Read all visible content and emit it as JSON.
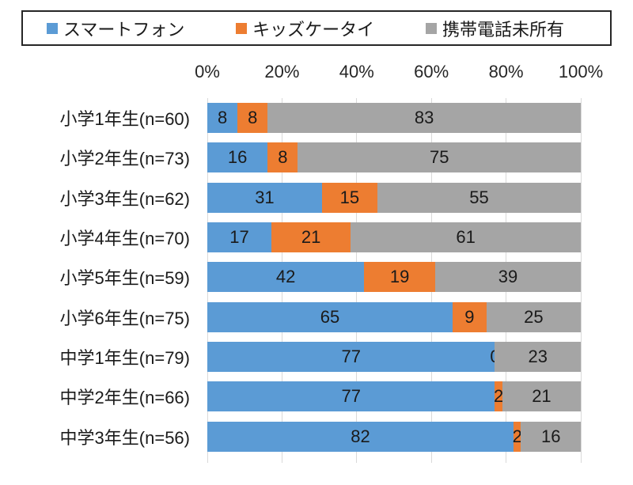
{
  "chart_data": {
    "type": "bar",
    "orientation": "horizontal",
    "stacked": true,
    "stacked_100_percent": true,
    "unit": "%",
    "title": "",
    "categories": [
      "小学1年生(n=60)",
      "小学2年生(n=73)",
      "小学3年生(n=62)",
      "小学4年生(n=70)",
      "小学5年生(n=59)",
      "小学6年生(n=75)",
      "中学1年生(n=79)",
      "中学2年生(n=66)",
      "中学3年生(n=56)"
    ],
    "series": [
      {
        "name": "スマートフォン",
        "color": "#5b9bd5",
        "values": [
          8,
          16,
          31,
          17,
          42,
          65,
          77,
          77,
          82
        ]
      },
      {
        "name": "キッズケータイ",
        "color": "#ed7d31",
        "values": [
          8,
          8,
          15,
          21,
          19,
          9,
          0,
          2,
          2
        ]
      },
      {
        "name": "携帯電話未所有",
        "color": "#a5a5a5",
        "values": [
          83,
          75,
          55,
          61,
          39,
          25,
          23,
          21,
          16
        ]
      }
    ],
    "x_ticks": [
      "0%",
      "20%",
      "40%",
      "60%",
      "80%",
      "100%"
    ],
    "xlim": [
      0,
      100
    ],
    "grid": true,
    "gridline_color": "#d9d9d9",
    "legend_position": "top"
  }
}
